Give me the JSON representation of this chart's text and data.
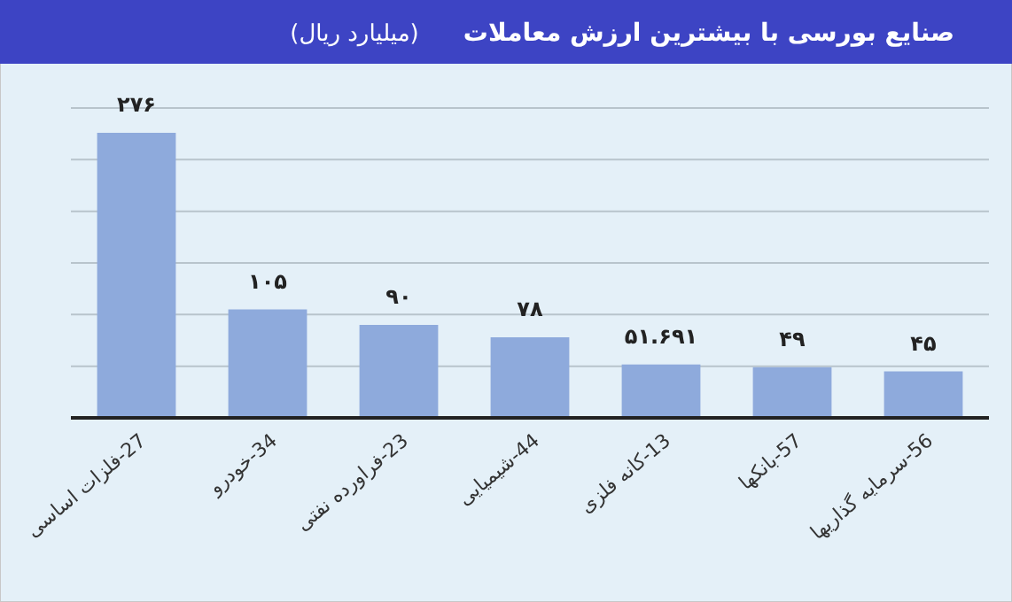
{
  "chart_data": {
    "type": "bar",
    "title": "صنایع بورسی با بیشترین ارزش معاملات",
    "subtitle": "(میلیارد ریال)",
    "categories": [
      "27-فلزات اساسی",
      "34-خودرو",
      "23-فراورده نفتی",
      "44-شیمیایی",
      "13-کانه فلزی",
      "57-بانکها",
      "56-سرمایه گذاریها"
    ],
    "values": [
      276,
      105,
      90,
      78,
      51.691,
      49,
      45
    ],
    "value_labels": [
      "۲۷۶",
      "۱۰۵",
      "۹۰",
      "۷۸",
      "۵۱.۶۹۱",
      "۴۹",
      "۴۵"
    ],
    "color": "#8eaadc",
    "ylim": [
      0,
      300
    ],
    "yticks": [
      {
        "value": 0,
        "label": null
      },
      {
        "value": 50,
        "label": null
      },
      {
        "value": 100,
        "label": null
      },
      {
        "value": 150,
        "label": null
      },
      {
        "value": 200,
        "label": null
      },
      {
        "value": 250,
        "label": null
      },
      {
        "value": 300,
        "label": null
      }
    ],
    "tick_labels": "x",
    "grid": "y"
  }
}
